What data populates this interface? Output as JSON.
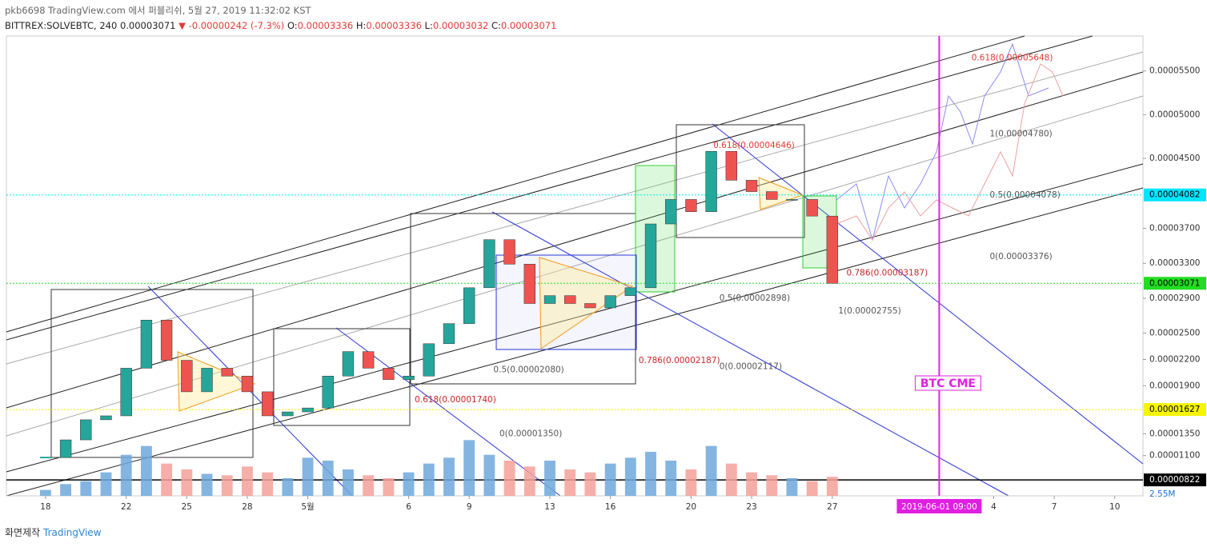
{
  "header": {
    "publish": "pkb6698 TradingView.com 에서 퍼블리쉬, 5월 27, 2019 11:32:02 KST",
    "symbol": "BITTREX:SOLVEBTC, 240",
    "last": "0.00003071",
    "change": "▼ -0.00000242 (-7.3%)",
    "ohlc": [
      {
        "key": "O:",
        "value": "0.00003336"
      },
      {
        "key": "H:",
        "value": "0.00003336"
      },
      {
        "key": "L:",
        "value": "0.00003032"
      },
      {
        "key": "C:",
        "value": "0.00003071"
      }
    ]
  },
  "chart_data": {
    "type": "candlestick",
    "x": [
      0,
      1,
      2,
      3,
      4,
      5,
      6,
      7,
      8,
      9,
      10,
      11,
      12,
      13,
      14,
      15,
      16,
      17,
      18,
      19,
      20,
      21,
      22,
      23,
      24,
      25,
      26,
      27,
      28,
      29,
      30,
      31,
      32,
      33,
      34,
      35,
      36,
      37,
      38,
      39
    ],
    "values": [
      1.078e-05,
      1.28e-05,
      1.51e-05,
      1.555e-05,
      2.1e-05,
      2.65e-05,
      2.19e-05,
      1.83e-05,
      2.1e-05,
      2.01e-05,
      1.83e-05,
      1.555e-05,
      1.6e-05,
      1.645e-05,
      2.01e-05,
      2.29e-05,
      2.1e-05,
      1.97e-05,
      2.01e-05,
      2.38e-05,
      2.61e-05,
      3.02e-05,
      3.57e-05,
      3.29e-05,
      2.84e-05,
      2.93e-05,
      2.84e-05,
      2.79e-05,
      2.93e-05,
      3.02e-05,
      3.75e-05,
      4.03e-05,
      3.89e-05,
      4.58e-05,
      4.25e-05,
      4.12e-05,
      4.03e-05,
      4.03e-05,
      3.84e-05,
      3.071e-05
    ],
    "volumes": [
      0.4,
      0.8,
      1.0,
      1.6,
      2.8,
      3.4,
      2.2,
      1.8,
      1.5,
      1.4,
      2.0,
      1.6,
      1.2,
      2.6,
      2.4,
      1.8,
      1.4,
      1.2,
      1.6,
      2.2,
      2.6,
      3.8,
      2.8,
      2.4,
      2.0,
      2.4,
      1.8,
      1.6,
      2.2,
      2.6,
      3.0,
      2.4,
      1.8,
      3.4,
      2.2,
      1.6,
      1.4,
      1.2,
      1.0,
      1.3
    ],
    "vlim": [
      0,
      6
    ],
    "volume_label": "2.55M",
    "up_color": "#26a69a",
    "down_color": "#ef5350",
    "vol_up_color": "#6fa8dc",
    "vol_down_color": "#f4a09a",
    "xlim": [
      -1.94,
      54.4
    ],
    "xticks": [
      {
        "value": 0,
        "label": "18"
      },
      {
        "value": 4,
        "label": "22"
      },
      {
        "value": 7,
        "label": "25"
      },
      {
        "value": 10,
        "label": "28"
      },
      {
        "value": 13,
        "label": "5월"
      },
      {
        "value": 18,
        "label": "6"
      },
      {
        "value": 21,
        "label": "9"
      },
      {
        "value": 25,
        "label": "13"
      },
      {
        "value": 28,
        "label": "16"
      },
      {
        "value": 32,
        "label": "20"
      },
      {
        "value": 35,
        "label": "23"
      },
      {
        "value": 39,
        "label": "27"
      },
      {
        "value": 47,
        "label": "4"
      },
      {
        "value": 50,
        "label": "7"
      },
      {
        "value": 53,
        "label": "10"
      }
    ],
    "ylim": [
      6.4e-06,
      5.9e-05
    ],
    "yticks": [
      {
        "value": 5.5e-05,
        "label": "0.00005500"
      },
      {
        "value": 5e-05,
        "label": "0.00005000"
      },
      {
        "value": 4.5e-05,
        "label": "0.00004500"
      },
      {
        "value": 3.7e-05,
        "label": "0.00003700"
      },
      {
        "value": 3.3e-05,
        "label": "0.00003300"
      },
      {
        "value": 2.9e-05,
        "label": "0.00002900"
      },
      {
        "value": 2.5e-05,
        "label": "0.00002500"
      },
      {
        "value": 2.2e-05,
        "label": "0.00002200"
      },
      {
        "value": 1.9e-05,
        "label": "0.00001900"
      },
      {
        "value": 1.35e-05,
        "label": "0.00001350"
      },
      {
        "value": 1.1e-05,
        "label": "0.00001100"
      }
    ],
    "grid": false,
    "hlines": [
      {
        "value": 4.082e-05,
        "label": "0.00004082",
        "color": "#00e5ff"
      },
      {
        "value": 3.071e-05,
        "label": "0.00003071",
        "color": "#22dd22"
      },
      {
        "value": 1.627e-05,
        "label": "0.00001627",
        "color": "#f5f500"
      },
      {
        "value": 8.22e-06,
        "label": "0.00000822",
        "color": "#000000"
      }
    ],
    "vline": {
      "x": 44.3,
      "label": "2019-06-01  09:00",
      "text": "BTC CME",
      "color": "#e020e0"
    },
    "annotations": [
      {
        "text": "0.618(0.00005648)",
        "x": 45.9,
        "y": 5.648e-05,
        "color": "#e53935"
      },
      {
        "text": "0.618(0.00004646)",
        "x": 33.1,
        "y": 4.646e-05,
        "color": "#e53935"
      },
      {
        "text": "1(0.00004780)",
        "x": 46.8,
        "y": 4.78e-05,
        "color": "#555555"
      },
      {
        "text": "0.5(0.00004078)",
        "x": 46.8,
        "y": 4.078e-05,
        "color": "#555555"
      },
      {
        "text": "0(0.00003376)",
        "x": 46.8,
        "y": 3.376e-05,
        "color": "#555555"
      },
      {
        "text": "0.786(0.00003187)",
        "x": 39.7,
        "y": 3.187e-05,
        "color": "#c62828"
      },
      {
        "text": "0.5(0.00002898)",
        "x": 33.4,
        "y": 2.898e-05,
        "color": "#555555"
      },
      {
        "text": "1(0.00002755)",
        "x": 39.3,
        "y": 2.755e-05,
        "color": "#555555"
      },
      {
        "text": "0.786(0.00002187)",
        "x": 29.4,
        "y": 2.187e-05,
        "color": "#c62828"
      },
      {
        "text": "0(0.00002117)",
        "x": 33.4,
        "y": 2.117e-05,
        "color": "#555555"
      },
      {
        "text": "0.5(0.00002080)",
        "x": 22.2,
        "y": 2.08e-05,
        "color": "#555555"
      },
      {
        "text": "0.618(0.00001740)",
        "x": 18.3,
        "y": 1.74e-05,
        "color": "#c62828"
      },
      {
        "text": "0(0.00001350)",
        "x": 22.5,
        "y": 1.35e-05,
        "color": "#555555"
      }
    ]
  },
  "footer": {
    "prefix": "화면제작",
    "brand": "TradingView"
  }
}
